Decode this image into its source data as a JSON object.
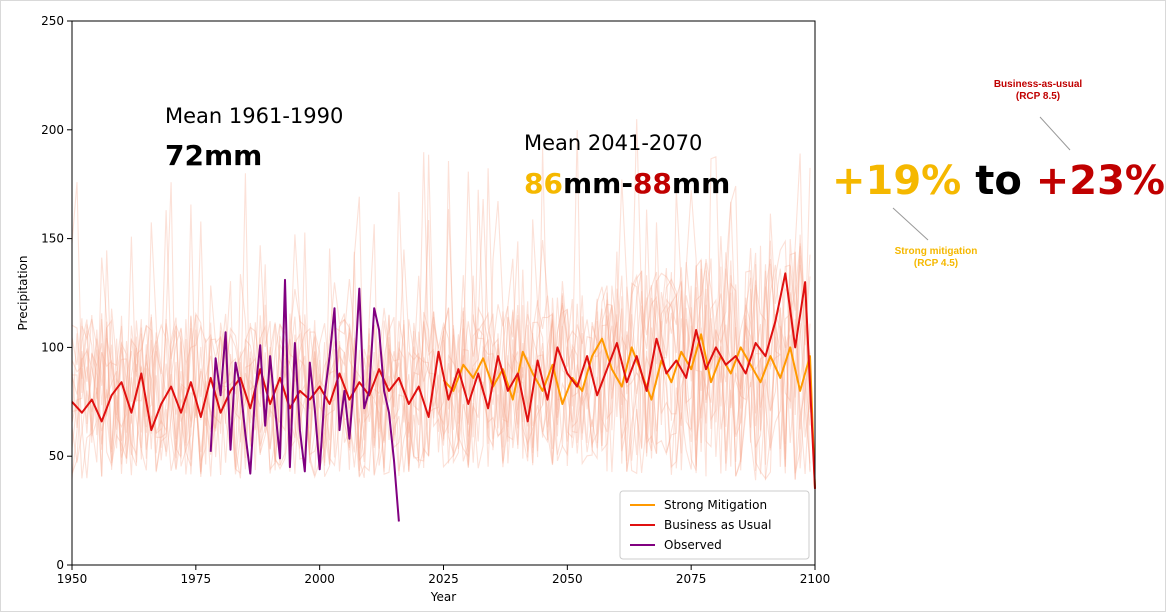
{
  "colors": {
    "strong": "#ff9900",
    "bau": "#e01010",
    "observed": "#800080",
    "ensemble": "#f7a98f",
    "pct_strong": "#f5b800",
    "pct_bau": "#c00000",
    "mm_strong": "#f5b800",
    "mm_bau": "#c00000"
  },
  "annotations": {
    "mean_past_label": "Mean 1961-1990",
    "mean_past_value": "72mm",
    "mean_future_label": "Mean 2041-2070",
    "mean_future_strong": "86",
    "mean_future_strong_unit": "mm-",
    "mean_future_bau": "88",
    "mean_future_bau_unit": "mm",
    "pct_strong": "+19%",
    "pct_to": " to ",
    "pct_bau": "+23%",
    "callout_bau_line1": "Business-as-usual",
    "callout_bau_line2": "(RCP 8.5)",
    "callout_strong_line1": "Strong mitigation",
    "callout_strong_line2": "(RCP 4.5)"
  },
  "chart_data": {
    "type": "line",
    "title": "",
    "xlabel": "Year",
    "ylabel": "Precipitation",
    "xlim": [
      1950,
      2100
    ],
    "ylim": [
      0,
      250
    ],
    "xticks": [
      1950,
      1975,
      2000,
      2025,
      2050,
      2075,
      2100
    ],
    "yticks": [
      0,
      50,
      100,
      150,
      200,
      250
    ],
    "grid": false,
    "legend_position": "bottom-right",
    "series": [
      {
        "name": "Strong Mitigation",
        "color_key": "strong",
        "x": [
          2025,
          2027,
          2029,
          2031,
          2033,
          2035,
          2037,
          2039,
          2041,
          2043,
          2045,
          2047,
          2049,
          2051,
          2053,
          2055,
          2057,
          2059,
          2061,
          2063,
          2065,
          2067,
          2069,
          2071,
          2073,
          2075,
          2077,
          2079,
          2081,
          2083,
          2085,
          2087,
          2089,
          2091,
          2093,
          2095,
          2097,
          2099,
          2100
        ],
        "y": [
          85,
          80,
          92,
          86,
          95,
          82,
          90,
          76,
          98,
          88,
          80,
          92,
          74,
          86,
          80,
          96,
          104,
          90,
          82,
          100,
          88,
          76,
          94,
          84,
          98,
          90,
          106,
          84,
          96,
          88,
          100,
          92,
          84,
          96,
          86,
          100,
          80,
          96,
          35
        ]
      },
      {
        "name": "Business as Usual",
        "color_key": "bau",
        "x": [
          1950,
          1952,
          1954,
          1956,
          1958,
          1960,
          1962,
          1964,
          1966,
          1968,
          1970,
          1972,
          1974,
          1976,
          1978,
          1980,
          1982,
          1984,
          1986,
          1988,
          1990,
          1992,
          1994,
          1996,
          1998,
          2000,
          2002,
          2004,
          2006,
          2008,
          2010,
          2012,
          2014,
          2016,
          2018,
          2020,
          2022,
          2024,
          2026,
          2028,
          2030,
          2032,
          2034,
          2036,
          2038,
          2040,
          2042,
          2044,
          2046,
          2048,
          2050,
          2052,
          2054,
          2056,
          2058,
          2060,
          2062,
          2064,
          2066,
          2068,
          2070,
          2072,
          2074,
          2076,
          2078,
          2080,
          2082,
          2084,
          2086,
          2088,
          2090,
          2092,
          2094,
          2096,
          2098,
          2100
        ],
        "y": [
          75,
          70,
          76,
          66,
          78,
          84,
          70,
          88,
          62,
          74,
          82,
          70,
          84,
          68,
          86,
          70,
          80,
          86,
          72,
          90,
          74,
          86,
          72,
          80,
          76,
          82,
          74,
          88,
          76,
          84,
          78,
          90,
          80,
          86,
          74,
          82,
          68,
          98,
          76,
          90,
          74,
          88,
          72,
          96,
          80,
          88,
          66,
          94,
          76,
          100,
          88,
          82,
          96,
          78,
          90,
          102,
          84,
          96,
          80,
          104,
          88,
          94,
          86,
          108,
          90,
          100,
          92,
          96,
          88,
          102,
          96,
          112,
          134,
          100,
          130,
          35
        ]
      },
      {
        "name": "Observed",
        "color_key": "observed",
        "x": [
          1978,
          1979,
          1980,
          1981,
          1982,
          1983,
          1984,
          1985,
          1986,
          1987,
          1988,
          1989,
          1990,
          1991,
          1992,
          1993,
          1994,
          1995,
          1996,
          1997,
          1998,
          1999,
          2000,
          2001,
          2002,
          2003,
          2004,
          2005,
          2006,
          2007,
          2008,
          2009,
          2010,
          2011,
          2012,
          2013,
          2014,
          2015,
          2016
        ],
        "y": [
          52,
          95,
          78,
          107,
          53,
          93,
          82,
          60,
          42,
          80,
          101,
          64,
          96,
          72,
          49,
          131,
          45,
          102,
          62,
          43,
          93,
          72,
          44,
          78,
          96,
          118,
          62,
          80,
          58,
          86,
          127,
          72,
          80,
          118,
          108,
          80,
          70,
          48,
          20
        ]
      }
    ]
  }
}
